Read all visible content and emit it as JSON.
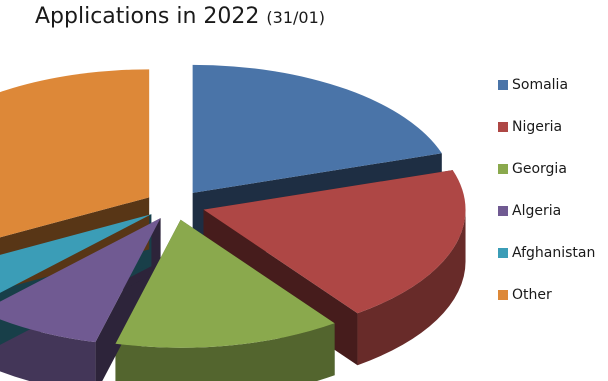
{
  "chart_data": {
    "type": "pie",
    "title": "Applications in 2022",
    "subtitle": "(31/01)",
    "legend_position": "right",
    "exploded": true,
    "style": "3d",
    "categories": [
      "Somalia",
      "Nigeria",
      "Georgia",
      "Algeria",
      "Afghanistan",
      "Other"
    ],
    "values": [
      20,
      20,
      14,
      8,
      5,
      33
    ],
    "colors": [
      "#4a74a8",
      "#ae4745",
      "#8aa94d",
      "#705a92",
      "#3b9db7",
      "#dd8838"
    ]
  }
}
